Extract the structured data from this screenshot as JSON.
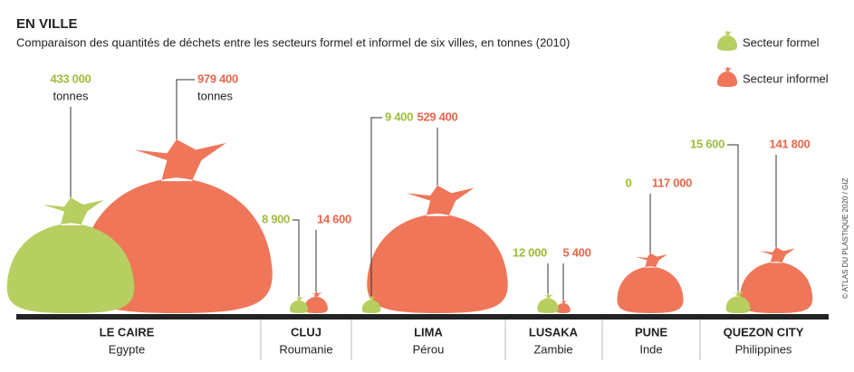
{
  "chart_data": {
    "type": "bag",
    "title": "EN VILLE",
    "subtitle": "Comparaison des quantités de déchets entre les secteurs formel et informel de six villes, en tonnes (2010)",
    "categories": [
      "LE CAIRE",
      "CLUJ",
      "LIMA",
      "LUSAKA",
      "PUNE",
      "QUEZON CITY"
    ],
    "countries": [
      "Egypte",
      "Roumanie",
      "Pérou",
      "Zambie",
      "Inde",
      "Philippines"
    ],
    "unit": "tonnes",
    "series": [
      {
        "name": "Secteur formel",
        "color": "#b6cf60",
        "label_color": "#9dbd38",
        "values": [
          433000,
          8900,
          9400,
          12000,
          0,
          15600
        ],
        "value_labels": [
          "433 000",
          "8 900",
          "9 400",
          "12 000",
          "0",
          "15 600"
        ]
      },
      {
        "name": "Secteur informel",
        "color": "#ef7659",
        "label_color": "#e8664a",
        "values": [
          979400,
          14600,
          529400,
          5400,
          117000,
          141800
        ],
        "value_labels": [
          "979 400",
          "14 600",
          "529 400",
          "5 400",
          "117 000",
          "141 800"
        ]
      }
    ],
    "source": "© ATLAS DU PLASTIQUE 2020 / GIZ"
  }
}
